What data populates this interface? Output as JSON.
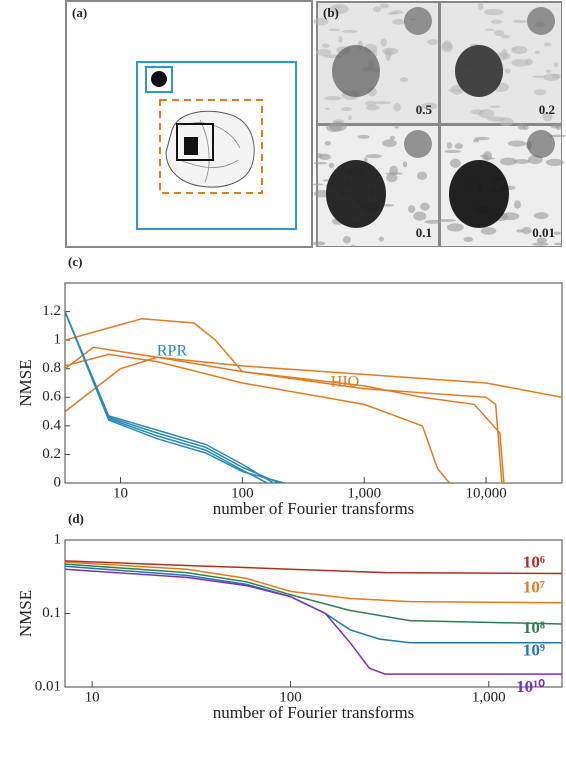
{
  "panel_a": {
    "label": "(a)"
  },
  "panel_b": {
    "label": "(b)",
    "tiles": [
      "0.5",
      "0.2",
      "0.1",
      "0.01"
    ]
  },
  "chart_data": [
    {
      "type": "line",
      "label": "(c)",
      "ylabel": "NMSE",
      "xlabel": "number of Fourier transforms",
      "xscale": "log",
      "yscale": "linear",
      "xlim": [
        3.5,
        42000
      ],
      "ylim": [
        0,
        1.4
      ],
      "xticks": [
        10,
        100,
        {
          "value": 1000,
          "label": "1,000"
        },
        {
          "value": 10000,
          "label": "10,000"
        }
      ],
      "yticks": [
        0,
        0.2,
        0.4,
        0.6,
        0.8,
        1,
        1.2
      ],
      "annotations": [
        "HIO",
        "RPR"
      ],
      "series": [
        {
          "color": "#e07b20",
          "x": [
            3.5,
            10,
            20,
            100,
            1000,
            10000,
            42000
          ],
          "values": [
            0.5,
            0.8,
            0.88,
            0.82,
            0.76,
            0.7,
            0.6
          ]
        },
        {
          "color": "#e07b20",
          "x": [
            3.5,
            6,
            20,
            100,
            1000,
            3000,
            8000,
            13000,
            14000
          ],
          "values": [
            0.8,
            0.95,
            0.88,
            0.78,
            0.68,
            0.6,
            0.55,
            0.35,
            0
          ]
        },
        {
          "color": "#e07b20",
          "x": [
            3.5,
            15,
            40,
            60,
            100,
            1000,
            10000,
            12000,
            13500
          ],
          "values": [
            1.0,
            1.15,
            1.12,
            1.0,
            0.78,
            0.66,
            0.6,
            0.55,
            0
          ]
        },
        {
          "color": "#e07b20",
          "x": [
            3.5,
            8,
            20,
            100,
            1000,
            3000,
            4000,
            5000
          ],
          "values": [
            0.82,
            0.9,
            0.85,
            0.7,
            0.55,
            0.4,
            0.1,
            0
          ]
        },
        {
          "color": "#2a8ab8",
          "x": [
            3.5,
            8,
            20,
            50,
            100,
            180
          ],
          "values": [
            1.2,
            0.47,
            0.37,
            0.27,
            0.13,
            0
          ]
        },
        {
          "color": "#2a8ab8",
          "x": [
            3.5,
            8,
            20,
            50,
            100,
            200
          ],
          "values": [
            1.2,
            0.46,
            0.35,
            0.25,
            0.11,
            0
          ]
        },
        {
          "color": "#2a8ab8",
          "x": [
            3.5,
            8,
            20,
            50,
            100,
            160
          ],
          "values": [
            1.2,
            0.45,
            0.33,
            0.23,
            0.09,
            0
          ]
        },
        {
          "color": "#2a8ab8",
          "x": [
            3.5,
            8,
            20,
            50,
            100,
            220
          ],
          "values": [
            1.2,
            0.44,
            0.31,
            0.21,
            0.08,
            0
          ]
        }
      ]
    },
    {
      "type": "line",
      "label": "(d)",
      "ylabel": "NMSE",
      "xlabel": "number of Fourier transforms",
      "xscale": "log",
      "yscale": "log",
      "xlim": [
        7.3,
        2340
      ],
      "ylim": [
        0.01,
        1
      ],
      "xticks": [
        10,
        100,
        {
          "value": 1000,
          "label": "1,000"
        }
      ],
      "yticks": [
        0.01,
        0.1,
        1
      ],
      "series": [
        {
          "name": "10⁶",
          "color": "#b03020",
          "x": [
            7.3,
            30,
            100,
            300,
            2340
          ],
          "values": [
            0.52,
            0.45,
            0.4,
            0.36,
            0.35
          ]
        },
        {
          "name": "10⁷",
          "color": "#e07b20",
          "x": [
            7.3,
            30,
            60,
            100,
            200,
            400,
            2340
          ],
          "values": [
            0.5,
            0.4,
            0.3,
            0.2,
            0.16,
            0.145,
            0.14
          ]
        },
        {
          "name": "10⁸",
          "color": "#2e7d4f",
          "x": [
            7.3,
            30,
            60,
            100,
            200,
            400,
            2340
          ],
          "values": [
            0.47,
            0.36,
            0.27,
            0.18,
            0.11,
            0.08,
            0.072
          ]
        },
        {
          "name": "10⁹",
          "color": "#1f77b4",
          "x": [
            7.3,
            30,
            60,
            100,
            150,
            200,
            280,
            400,
            2340
          ],
          "values": [
            0.44,
            0.33,
            0.25,
            0.17,
            0.1,
            0.06,
            0.045,
            0.04,
            0.04
          ]
        },
        {
          "name": "10¹⁰",
          "color": "#7b2fbf",
          "x": [
            7.3,
            30,
            60,
            100,
            150,
            200,
            250,
            300,
            2340
          ],
          "values": [
            0.4,
            0.31,
            0.24,
            0.17,
            0.1,
            0.04,
            0.018,
            0.015,
            0.015
          ]
        }
      ]
    }
  ]
}
